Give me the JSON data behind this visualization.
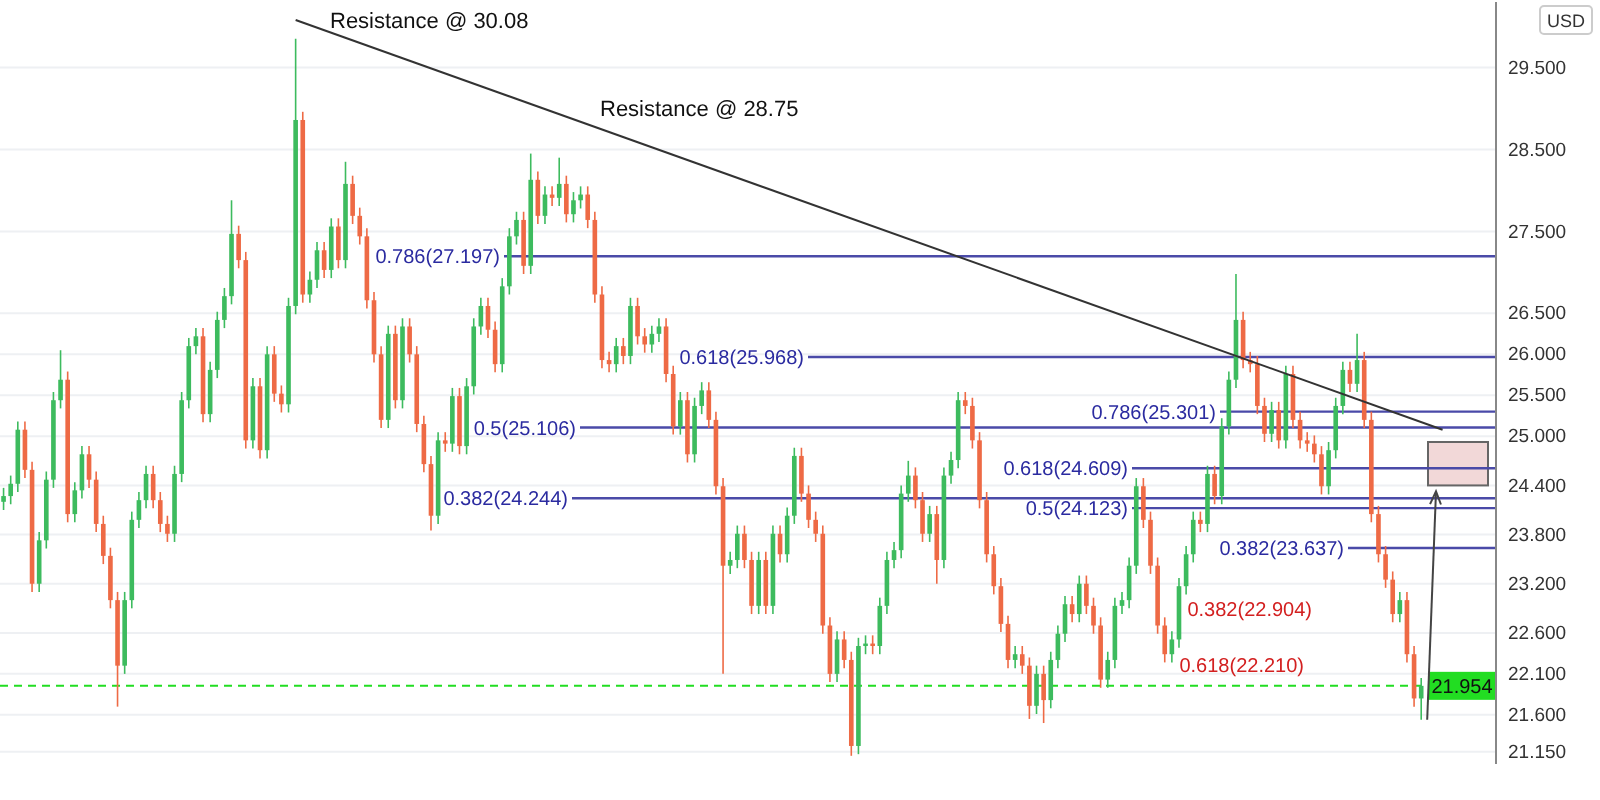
{
  "chart_data": {
    "type": "candlestick",
    "ylabel": "USD",
    "categories": [
      null,
      null,
      null,
      null,
      null,
      null,
      null,
      null,
      null,
      null,
      null,
      null,
      null,
      null,
      null,
      null,
      null,
      null,
      null,
      null,
      null,
      null,
      null,
      null,
      null,
      null,
      null,
      null,
      null,
      null,
      null,
      null,
      null,
      null,
      null,
      null,
      null,
      null,
      null,
      null,
      null,
      null,
      null,
      null,
      null,
      null,
      null,
      null,
      null,
      null,
      null,
      null,
      null,
      null,
      null,
      null,
      null,
      null,
      null,
      null,
      null,
      null,
      null,
      null,
      null,
      null,
      null,
      null,
      null,
      null,
      null,
      null,
      null,
      null,
      null,
      null,
      null,
      null,
      null,
      null,
      null,
      null,
      null,
      null,
      null,
      null,
      null,
      null,
      null,
      null,
      null,
      null,
      null,
      null,
      null,
      null,
      null,
      null,
      null,
      null,
      null,
      null,
      null,
      null,
      null,
      null,
      null,
      null,
      null,
      null,
      null,
      null,
      null,
      null,
      null,
      null,
      null,
      null,
      null,
      null,
      null,
      null,
      null,
      null,
      null,
      null,
      null,
      null,
      null,
      null,
      null,
      null,
      null,
      null,
      null,
      null,
      null,
      null,
      null,
      null,
      null,
      null,
      null,
      null,
      null,
      null,
      null,
      null,
      null,
      null,
      null,
      null,
      null,
      null,
      null,
      null,
      null,
      null,
      null,
      null,
      null,
      null,
      null,
      null,
      null,
      null,
      null,
      null,
      null,
      null,
      null,
      null,
      null,
      null,
      null,
      null,
      null,
      null,
      null,
      null,
      null,
      null,
      null,
      null,
      null,
      null,
      null,
      null,
      null,
      null,
      null,
      null,
      null,
      null,
      null,
      null,
      null,
      null,
      null,
      null,
      null,
      null,
      null,
      null,
      null,
      null,
      null,
      null,
      null,
      null
    ],
    "ohlc": [
      [
        24.2,
        24.37,
        24.1,
        24.27
      ],
      [
        24.27,
        24.52,
        24.17,
        24.42
      ],
      [
        24.42,
        25.18,
        24.32,
        25.08
      ],
      [
        25.08,
        25.18,
        24.49,
        24.59
      ],
      [
        24.59,
        24.69,
        23.1,
        23.2
      ],
      [
        23.2,
        23.83,
        23.1,
        23.73
      ],
      [
        23.73,
        24.57,
        23.63,
        24.47
      ],
      [
        24.47,
        25.54,
        24.37,
        25.44
      ],
      [
        25.44,
        26.05,
        25.34,
        25.69
      ],
      [
        25.69,
        25.79,
        23.95,
        24.05
      ],
      [
        24.05,
        24.44,
        23.95,
        24.34
      ],
      [
        24.34,
        24.88,
        24.24,
        24.78
      ],
      [
        24.78,
        24.88,
        24.37,
        24.47
      ],
      [
        24.47,
        24.57,
        23.83,
        23.93
      ],
      [
        23.93,
        24.03,
        23.44,
        23.54
      ],
      [
        23.54,
        23.64,
        22.9,
        23.0
      ],
      [
        23.0,
        23.1,
        21.7,
        22.2
      ],
      [
        22.2,
        23.1,
        22.1,
        23.0
      ],
      [
        23.0,
        24.08,
        22.9,
        23.98
      ],
      [
        23.98,
        24.32,
        23.88,
        24.22
      ],
      [
        24.22,
        24.64,
        24.12,
        24.54
      ],
      [
        24.54,
        24.64,
        24.12,
        24.22
      ],
      [
        24.22,
        24.32,
        23.83,
        23.93
      ],
      [
        23.93,
        24.03,
        23.71,
        23.81
      ],
      [
        23.81,
        24.64,
        23.71,
        24.54
      ],
      [
        24.54,
        25.54,
        24.44,
        25.44
      ],
      [
        25.44,
        26.2,
        25.34,
        26.1
      ],
      [
        26.1,
        26.32,
        26.0,
        26.22
      ],
      [
        26.22,
        26.32,
        25.17,
        25.27
      ],
      [
        25.27,
        25.91,
        25.17,
        25.81
      ],
      [
        25.81,
        26.52,
        25.71,
        26.42
      ],
      [
        26.42,
        26.81,
        26.32,
        26.71
      ],
      [
        26.71,
        27.88,
        26.61,
        27.47
      ],
      [
        27.47,
        27.57,
        27.05,
        27.15
      ],
      [
        27.15,
        27.25,
        24.85,
        24.95
      ],
      [
        24.95,
        25.71,
        24.85,
        25.61
      ],
      [
        25.61,
        25.71,
        24.73,
        24.83
      ],
      [
        24.83,
        26.1,
        24.73,
        26.0
      ],
      [
        26.0,
        26.1,
        25.42,
        25.52
      ],
      [
        25.52,
        25.62,
        25.29,
        25.39
      ],
      [
        25.39,
        26.69,
        25.29,
        26.59
      ],
      [
        26.59,
        29.85,
        26.49,
        28.86
      ],
      [
        28.86,
        28.96,
        26.63,
        26.73
      ],
      [
        26.73,
        27.01,
        26.63,
        26.91
      ],
      [
        26.91,
        27.37,
        26.81,
        27.27
      ],
      [
        27.27,
        27.37,
        26.93,
        27.03
      ],
      [
        27.03,
        27.66,
        26.93,
        27.56
      ],
      [
        27.56,
        27.66,
        27.05,
        27.15
      ],
      [
        27.15,
        28.35,
        27.05,
        28.08
      ],
      [
        28.08,
        28.18,
        27.59,
        27.69
      ],
      [
        27.69,
        27.79,
        27.34,
        27.44
      ],
      [
        27.44,
        27.54,
        26.56,
        26.66
      ],
      [
        26.66,
        26.76,
        25.9,
        26.0
      ],
      [
        26.0,
        26.1,
        25.1,
        25.2
      ],
      [
        25.2,
        26.35,
        25.1,
        26.25
      ],
      [
        26.25,
        26.35,
        25.34,
        25.44
      ],
      [
        25.44,
        26.44,
        25.34,
        26.34
      ],
      [
        26.34,
        26.44,
        25.9,
        26.0
      ],
      [
        26.0,
        26.1,
        25.05,
        25.15
      ],
      [
        25.15,
        25.25,
        24.56,
        24.66
      ],
      [
        24.66,
        24.76,
        23.85,
        24.03
      ],
      [
        24.03,
        25.05,
        23.93,
        24.95
      ],
      [
        24.95,
        25.05,
        24.81,
        24.91
      ],
      [
        24.91,
        25.59,
        24.81,
        25.49
      ],
      [
        25.49,
        25.59,
        24.78,
        24.88
      ],
      [
        24.88,
        25.71,
        24.78,
        25.61
      ],
      [
        25.61,
        26.44,
        25.51,
        26.34
      ],
      [
        26.34,
        26.69,
        26.24,
        26.59
      ],
      [
        26.59,
        26.69,
        26.2,
        26.3
      ],
      [
        26.3,
        26.4,
        25.78,
        25.88
      ],
      [
        25.88,
        26.93,
        25.78,
        26.83
      ],
      [
        26.83,
        27.54,
        26.73,
        27.44
      ],
      [
        27.44,
        27.74,
        27.34,
        27.64
      ],
      [
        27.64,
        27.74,
        26.98,
        27.08
      ],
      [
        27.08,
        28.45,
        26.98,
        28.13
      ],
      [
        28.13,
        28.23,
        27.59,
        27.69
      ],
      [
        27.69,
        28.05,
        27.59,
        27.95
      ],
      [
        27.95,
        28.05,
        27.81,
        27.91
      ],
      [
        27.91,
        28.4,
        27.81,
        28.08
      ],
      [
        28.08,
        28.18,
        27.61,
        27.71
      ],
      [
        27.71,
        27.98,
        27.61,
        27.88
      ],
      [
        27.88,
        28.05,
        27.78,
        27.95
      ],
      [
        27.95,
        28.05,
        27.54,
        27.64
      ],
      [
        27.64,
        27.74,
        26.63,
        26.73
      ],
      [
        26.73,
        26.83,
        25.83,
        25.93
      ],
      [
        25.93,
        26.03,
        25.78,
        25.88
      ],
      [
        25.88,
        26.2,
        25.78,
        26.1
      ],
      [
        26.1,
        26.2,
        25.88,
        25.98
      ],
      [
        25.98,
        26.69,
        25.88,
        26.59
      ],
      [
        26.59,
        26.69,
        26.12,
        26.22
      ],
      [
        26.22,
        26.32,
        26.02,
        26.12
      ],
      [
        26.12,
        26.35,
        26.02,
        26.25
      ],
      [
        26.25,
        26.44,
        26.15,
        26.34
      ],
      [
        26.34,
        26.44,
        25.66,
        25.76
      ],
      [
        25.76,
        25.86,
        25.02,
        25.12
      ],
      [
        25.12,
        25.54,
        25.02,
        25.44
      ],
      [
        25.44,
        25.54,
        24.68,
        24.78
      ],
      [
        24.78,
        25.47,
        24.68,
        25.37
      ],
      [
        25.37,
        25.66,
        25.27,
        25.56
      ],
      [
        25.56,
        25.66,
        25.1,
        25.2
      ],
      [
        25.2,
        25.3,
        24.29,
        24.39
      ],
      [
        24.39,
        24.49,
        22.1,
        23.42
      ],
      [
        23.42,
        23.59,
        23.32,
        23.49
      ],
      [
        23.49,
        23.91,
        23.39,
        23.81
      ],
      [
        23.81,
        23.91,
        23.39,
        23.49
      ],
      [
        23.49,
        23.59,
        22.83,
        22.93
      ],
      [
        22.93,
        23.59,
        22.83,
        23.49
      ],
      [
        23.49,
        23.59,
        22.83,
        22.93
      ],
      [
        22.93,
        23.91,
        22.83,
        23.81
      ],
      [
        23.81,
        23.91,
        23.46,
        23.56
      ],
      [
        23.56,
        24.13,
        23.46,
        24.03
      ],
      [
        24.03,
        24.86,
        23.93,
        24.76
      ],
      [
        24.76,
        24.86,
        24.2,
        24.3
      ],
      [
        24.3,
        24.4,
        23.88,
        23.98
      ],
      [
        23.98,
        24.08,
        23.71,
        23.81
      ],
      [
        23.81,
        23.91,
        22.59,
        22.69
      ],
      [
        22.69,
        22.79,
        22.0,
        22.1
      ],
      [
        22.1,
        22.62,
        22.0,
        22.52
      ],
      [
        22.52,
        22.62,
        22.17,
        22.27
      ],
      [
        22.27,
        22.37,
        21.1,
        21.22
      ],
      [
        21.22,
        22.54,
        21.12,
        22.44
      ],
      [
        22.44,
        22.57,
        22.34,
        22.47
      ],
      [
        22.47,
        22.57,
        22.34,
        22.44
      ],
      [
        22.44,
        23.03,
        22.34,
        22.93
      ],
      [
        22.93,
        23.59,
        22.83,
        23.49
      ],
      [
        23.49,
        23.71,
        23.39,
        23.61
      ],
      [
        23.61,
        24.4,
        23.51,
        24.3
      ],
      [
        24.3,
        24.7,
        24.2,
        24.52
      ],
      [
        24.52,
        24.62,
        24.12,
        24.22
      ],
      [
        24.22,
        24.32,
        23.71,
        23.81
      ],
      [
        23.81,
        24.15,
        23.71,
        24.05
      ],
      [
        24.05,
        24.15,
        23.2,
        23.49
      ],
      [
        23.49,
        24.62,
        23.39,
        24.52
      ],
      [
        24.52,
        24.81,
        24.42,
        24.71
      ],
      [
        24.71,
        25.54,
        24.61,
        25.44
      ],
      [
        25.44,
        25.54,
        25.27,
        25.37
      ],
      [
        25.37,
        25.47,
        24.85,
        24.95
      ],
      [
        24.95,
        25.05,
        24.12,
        24.22
      ],
      [
        24.22,
        24.32,
        23.46,
        23.56
      ],
      [
        23.56,
        23.66,
        23.07,
        23.17
      ],
      [
        23.17,
        23.27,
        22.61,
        22.71
      ],
      [
        22.71,
        22.81,
        22.17,
        22.27
      ],
      [
        22.27,
        22.44,
        22.17,
        22.34
      ],
      [
        22.34,
        22.44,
        22.1,
        22.2
      ],
      [
        22.2,
        22.3,
        21.55,
        21.71
      ],
      [
        21.71,
        22.2,
        21.61,
        22.1
      ],
      [
        22.1,
        22.2,
        21.5,
        21.78
      ],
      [
        21.78,
        22.37,
        21.68,
        22.27
      ],
      [
        22.27,
        22.69,
        22.17,
        22.59
      ],
      [
        22.59,
        23.05,
        22.49,
        22.95
      ],
      [
        22.95,
        23.05,
        22.73,
        22.83
      ],
      [
        22.83,
        23.3,
        22.73,
        23.2
      ],
      [
        23.2,
        23.3,
        22.83,
        22.93
      ],
      [
        22.93,
        23.03,
        22.59,
        22.69
      ],
      [
        22.69,
        22.79,
        21.93,
        22.03
      ],
      [
        22.03,
        22.37,
        21.93,
        22.27
      ],
      [
        22.27,
        23.03,
        22.17,
        22.93
      ],
      [
        22.93,
        23.1,
        22.83,
        23.0
      ],
      [
        23.0,
        23.52,
        22.9,
        23.42
      ],
      [
        23.42,
        24.49,
        23.32,
        24.39
      ],
      [
        24.39,
        24.49,
        23.88,
        23.98
      ],
      [
        23.98,
        24.08,
        23.32,
        23.42
      ],
      [
        23.42,
        23.52,
        22.59,
        22.69
      ],
      [
        22.69,
        22.79,
        22.24,
        22.34
      ],
      [
        22.34,
        22.62,
        22.24,
        22.52
      ],
      [
        22.52,
        23.27,
        22.42,
        23.17
      ],
      [
        23.17,
        23.66,
        23.07,
        23.56
      ],
      [
        23.56,
        24.08,
        23.46,
        23.98
      ],
      [
        23.98,
        24.08,
        23.83,
        23.93
      ],
      [
        23.93,
        24.64,
        23.83,
        24.54
      ],
      [
        24.54,
        24.64,
        24.17,
        24.27
      ],
      [
        24.27,
        25.22,
        24.17,
        25.12
      ],
      [
        25.12,
        25.79,
        25.02,
        25.69
      ],
      [
        25.69,
        26.98,
        25.59,
        26.42
      ],
      [
        26.42,
        26.52,
        25.83,
        25.93
      ],
      [
        25.93,
        26.03,
        25.78,
        25.88
      ],
      [
        25.88,
        25.98,
        25.27,
        25.37
      ],
      [
        25.37,
        25.47,
        24.93,
        25.03
      ],
      [
        25.03,
        25.42,
        24.93,
        25.32
      ],
      [
        25.32,
        25.42,
        24.85,
        24.95
      ],
      [
        24.95,
        25.86,
        24.85,
        25.76
      ],
      [
        25.76,
        25.86,
        25.1,
        25.2
      ],
      [
        25.2,
        25.3,
        24.85,
        24.95
      ],
      [
        24.95,
        25.05,
        24.81,
        24.91
      ],
      [
        24.91,
        25.01,
        24.68,
        24.78
      ],
      [
        24.78,
        24.88,
        24.29,
        24.39
      ],
      [
        24.39,
        24.93,
        24.29,
        24.83
      ],
      [
        24.83,
        25.47,
        24.73,
        25.37
      ],
      [
        25.37,
        25.91,
        25.27,
        25.81
      ],
      [
        25.81,
        25.91,
        25.54,
        25.64
      ],
      [
        25.64,
        26.25,
        25.54,
        25.93
      ],
      [
        25.93,
        26.03,
        25.1,
        25.2
      ],
      [
        25.2,
        25.3,
        23.95,
        24.05
      ],
      [
        24.05,
        24.15,
        23.46,
        23.56
      ],
      [
        23.56,
        23.66,
        23.15,
        23.25
      ],
      [
        23.25,
        23.35,
        22.73,
        22.83
      ],
      [
        22.83,
        23.1,
        22.73,
        23.0
      ],
      [
        23.0,
        23.1,
        22.24,
        22.34
      ],
      [
        22.34,
        22.44,
        21.7,
        21.8
      ],
      [
        21.8,
        22.05,
        21.54,
        21.954
      ],
      null,
      null,
      null,
      null,
      null,
      null,
      null,
      null,
      null,
      null
    ],
    "series": [
      {
        "type": "line",
        "values": [
          null,
          null,
          null,
          null,
          null,
          null,
          null,
          null,
          null,
          null,
          null,
          null,
          null,
          null,
          null,
          null,
          null,
          null,
          null,
          null,
          null,
          null,
          null,
          null,
          null,
          null,
          null,
          null,
          null,
          null,
          null,
          null,
          null,
          null,
          null,
          null,
          null,
          null,
          null,
          null,
          null,
          30.08,
          null,
          null,
          null,
          null,
          null,
          null,
          null,
          null,
          null,
          null,
          null,
          null,
          null,
          null,
          null,
          null,
          null,
          null,
          null,
          null,
          null,
          null,
          null,
          null,
          null,
          null,
          null,
          null,
          null,
          null,
          null,
          null,
          null,
          null,
          null,
          null,
          null,
          null,
          null,
          null,
          null,
          null,
          null,
          null,
          null,
          null,
          null,
          null,
          null,
          null,
          null,
          null,
          null,
          null,
          null,
          null,
          null,
          null,
          null,
          null,
          null,
          null,
          null,
          null,
          null,
          null,
          null,
          null,
          null,
          null,
          null,
          null,
          null,
          null,
          null,
          null,
          null,
          null,
          null,
          null,
          null,
          null,
          null,
          null,
          null,
          null,
          null,
          null,
          null,
          null,
          null,
          null,
          null,
          null,
          null,
          null,
          null,
          null,
          null,
          null,
          null,
          null,
          null,
          null,
          null,
          null,
          null,
          null,
          null,
          null,
          null,
          null,
          null,
          null,
          null,
          null,
          null,
          null,
          null,
          null,
          null,
          null,
          null,
          null,
          null,
          null,
          null,
          null,
          null,
          null,
          null,
          null,
          null,
          null,
          null,
          null,
          null,
          null,
          null,
          null,
          null,
          null,
          null,
          null,
          null,
          null,
          null,
          null,
          null,
          null,
          null,
          null,
          null,
          null,
          null,
          null,
          null,
          null,
          null,
          null,
          25.08,
          null,
          null,
          null,
          null,
          null,
          null,
          null
        ],
        "color": "#333333"
      }
    ],
    "ylim": [
      21.0,
      30.3
    ],
    "yticks": [
      {
        "value": 21.15,
        "label": "21.150"
      },
      {
        "value": 21.6,
        "label": "21.600"
      },
      {
        "value": 22.1,
        "label": "22.100"
      },
      {
        "value": 22.6,
        "label": "22.600"
      },
      {
        "value": 23.2,
        "label": "23.200"
      },
      {
        "value": 23.8,
        "label": "23.800"
      },
      {
        "value": 24.4,
        "label": "24.400"
      },
      {
        "value": 25.0,
        "label": "25.000"
      },
      {
        "value": 25.5,
        "label": "25.500"
      },
      {
        "value": 26.0,
        "label": "26.000"
      },
      {
        "value": 26.5,
        "label": "26.500"
      },
      {
        "value": 27.5,
        "label": "27.500"
      },
      {
        "value": 28.5,
        "label": "28.500"
      },
      {
        "value": 29.5,
        "label": "29.500"
      }
    ],
    "grid": "y",
    "ref_lines": [
      {
        "axis": "y",
        "value": 27.197,
        "label": "0.786(27.197)",
        "color": "#4a4aa8"
      },
      {
        "axis": "y",
        "value": 25.968,
        "label": "0.618(25.968)",
        "color": "#4a4aa8"
      },
      {
        "axis": "y",
        "value": 25.106,
        "label": "0.5(25.106)",
        "color": "#4a4aa8"
      },
      {
        "axis": "y",
        "value": 24.244,
        "label": "0.382(24.244)",
        "color": "#4a4aa8"
      },
      {
        "axis": "y",
        "value": 25.301,
        "label": "0.786(25.301)",
        "color": "#4a4aa8"
      },
      {
        "axis": "y",
        "value": 24.609,
        "label": "0.618(24.609)",
        "color": "#4a4aa8"
      },
      {
        "axis": "y",
        "value": 24.123,
        "label": "0.5(24.123)",
        "color": "#4a4aa8"
      },
      {
        "axis": "y",
        "value": 23.637,
        "label": "0.382(23.637)",
        "color": "#4a4aa8"
      },
      {
        "axis": "y",
        "value": 21.954,
        "label": "21.954",
        "color": "#22dd22",
        "line_style": "dashed"
      }
    ],
    "bands": [
      {
        "axis": "y",
        "from": 24.4,
        "to": 24.93,
        "color": "#f2d8d8"
      }
    ],
    "annotations": [
      "Resistance @ 30.08",
      "Resistance @ 28.75",
      "0.382(22.904)",
      "0.618(22.210)"
    ]
  }
}
